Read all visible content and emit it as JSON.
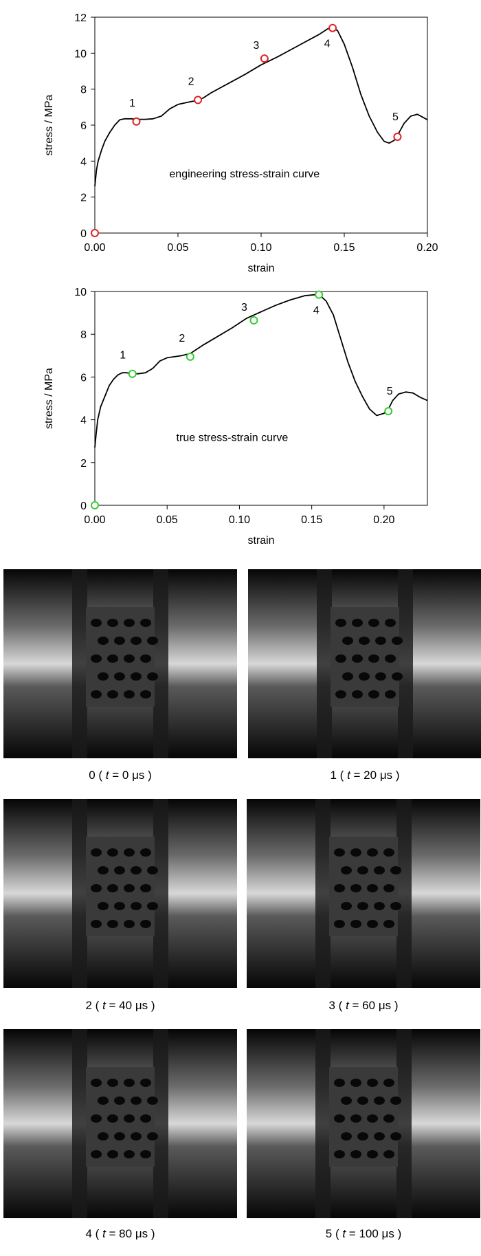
{
  "chart_data": [
    {
      "type": "line",
      "annotation": "engineering stress-strain curve",
      "xlabel": "strain",
      "ylabel": "stress / MPa",
      "xlim": [
        0,
        0.2
      ],
      "ylim": [
        0,
        12
      ],
      "xticks": [
        0.0,
        0.05,
        0.1,
        0.15,
        0.2
      ],
      "xtick_labels": [
        "0.00",
        "0.05",
        "0.10",
        "0.15",
        "0.20"
      ],
      "yticks": [
        0,
        2,
        4,
        6,
        8,
        10,
        12
      ],
      "ytick_labels": [
        "0",
        "2",
        "4",
        "6",
        "8",
        "10",
        "12"
      ],
      "marker_color": "#e02020",
      "line_color": "#000000",
      "series": [
        {
          "x": [
            0.0,
            0.001,
            0.002,
            0.004,
            0.006,
            0.009,
            0.012,
            0.015,
            0.018,
            0.022,
            0.026,
            0.03,
            0.035,
            0.04,
            0.045,
            0.05,
            0.055,
            0.06,
            0.065,
            0.07,
            0.08,
            0.09,
            0.1,
            0.11,
            0.12,
            0.13,
            0.135,
            0.14,
            0.143,
            0.146,
            0.15,
            0.155,
            0.16,
            0.165,
            0.17,
            0.174,
            0.177,
            0.18,
            0.183,
            0.186,
            0.19,
            0.194,
            0.197,
            0.2
          ],
          "y": [
            2.6,
            3.5,
            4.0,
            4.6,
            5.1,
            5.6,
            6.0,
            6.3,
            6.35,
            6.35,
            6.32,
            6.32,
            6.35,
            6.5,
            6.9,
            7.15,
            7.25,
            7.35,
            7.5,
            7.8,
            8.3,
            8.8,
            9.35,
            9.8,
            10.3,
            10.8,
            11.05,
            11.35,
            11.4,
            11.25,
            10.5,
            9.2,
            7.7,
            6.5,
            5.6,
            5.1,
            5.0,
            5.15,
            5.6,
            6.1,
            6.5,
            6.6,
            6.45,
            6.3
          ]
        }
      ],
      "points": [
        {
          "label": "",
          "x": 0.0,
          "y": 0.0
        },
        {
          "label": "1",
          "x": 0.025,
          "y": 6.2
        },
        {
          "label": "2",
          "x": 0.062,
          "y": 7.4
        },
        {
          "label": "3",
          "x": 0.102,
          "y": 9.7
        },
        {
          "label": "4",
          "x": 0.143,
          "y": 11.4
        },
        {
          "label": "5",
          "x": 0.182,
          "y": 5.35
        }
      ]
    },
    {
      "type": "line",
      "annotation": "true stress-strain curve",
      "xlabel": "strain",
      "ylabel": "stress / MPa",
      "xlim": [
        0,
        0.23
      ],
      "ylim": [
        0,
        10
      ],
      "xticks": [
        0.0,
        0.05,
        0.1,
        0.15,
        0.2
      ],
      "xtick_labels": [
        "0.00",
        "0.05",
        "0.10",
        "0.15",
        "0.20"
      ],
      "yticks": [
        0,
        2,
        4,
        6,
        8,
        10
      ],
      "ytick_labels": [
        "0",
        "2",
        "4",
        "6",
        "8",
        "10"
      ],
      "marker_color": "#33cc33",
      "line_color": "#000000",
      "series": [
        {
          "x": [
            0.0,
            0.001,
            0.002,
            0.004,
            0.007,
            0.01,
            0.013,
            0.016,
            0.019,
            0.022,
            0.026,
            0.03,
            0.035,
            0.04,
            0.045,
            0.05,
            0.055,
            0.06,
            0.066,
            0.075,
            0.085,
            0.095,
            0.105,
            0.115,
            0.125,
            0.135,
            0.145,
            0.152,
            0.156,
            0.16,
            0.165,
            0.17,
            0.175,
            0.18,
            0.185,
            0.19,
            0.195,
            0.2,
            0.203,
            0.206,
            0.21,
            0.215,
            0.22,
            0.225,
            0.23
          ],
          "y": [
            2.7,
            3.4,
            4.0,
            4.6,
            5.1,
            5.6,
            5.9,
            6.1,
            6.2,
            6.2,
            6.15,
            6.15,
            6.2,
            6.4,
            6.75,
            6.9,
            6.95,
            7.0,
            7.1,
            7.5,
            7.9,
            8.3,
            8.75,
            9.05,
            9.35,
            9.6,
            9.8,
            9.85,
            9.8,
            9.55,
            8.9,
            7.8,
            6.7,
            5.8,
            5.1,
            4.5,
            4.2,
            4.3,
            4.5,
            4.9,
            5.2,
            5.3,
            5.25,
            5.05,
            4.9
          ]
        }
      ],
      "points": [
        {
          "label": "",
          "x": 0.0,
          "y": 0.0
        },
        {
          "label": "1",
          "x": 0.026,
          "y": 6.15
        },
        {
          "label": "2",
          "x": 0.066,
          "y": 6.95
        },
        {
          "label": "3",
          "x": 0.11,
          "y": 8.65
        },
        {
          "label": "4",
          "x": 0.155,
          "y": 9.85
        },
        {
          "label": "5",
          "x": 0.203,
          "y": 4.4
        }
      ]
    }
  ],
  "frames": [
    {
      "index": "0",
      "time_value": "0"
    },
    {
      "index": "1",
      "time_value": "20"
    },
    {
      "index": "2",
      "time_value": "40"
    },
    {
      "index": "3",
      "time_value": "60"
    },
    {
      "index": "4",
      "time_value": "80"
    },
    {
      "index": "5",
      "time_value": "100"
    }
  ],
  "frame_time_symbol": "t",
  "frame_time_unit": "μs"
}
